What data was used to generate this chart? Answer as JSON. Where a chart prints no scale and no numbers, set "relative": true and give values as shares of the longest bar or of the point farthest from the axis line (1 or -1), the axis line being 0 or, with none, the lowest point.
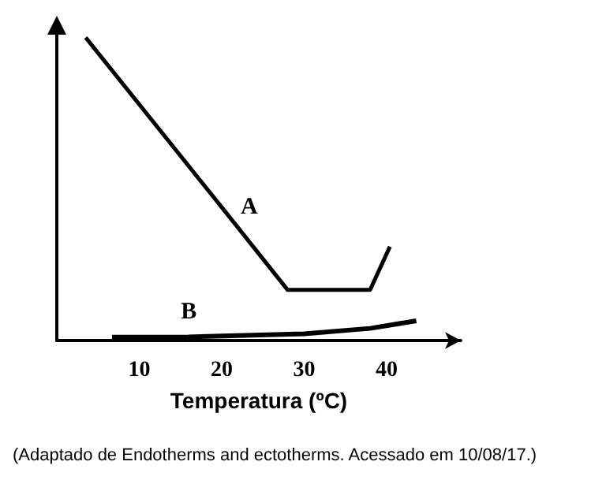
{
  "chart_data": {
    "type": "line",
    "relative": true,
    "xlabel": "Temperatura (ºC)",
    "xlim": [
      0,
      49
    ],
    "xticks": [
      10,
      20,
      30,
      40
    ],
    "tick_labels": "x",
    "grid": false,
    "legend": false,
    "marker": "none",
    "line_style": "solid",
    "series": [
      {
        "name": "A",
        "color": "#000000",
        "x": [
          3.5,
          20,
          28,
          38,
          40.4
        ],
        "values": [
          1,
          0.44,
          0.167,
          0.167,
          0.31
        ]
      },
      {
        "name": "B",
        "color": "#000000",
        "x": [
          6.7,
          16,
          30,
          38,
          43.6
        ],
        "values": [
          0.011,
          0.012,
          0.022,
          0.04,
          0.065
        ]
      }
    ],
    "annotations": [
      "(Adaptado de Endotherms and ectotherms. Acessado em 10/08/17.)"
    ]
  }
}
